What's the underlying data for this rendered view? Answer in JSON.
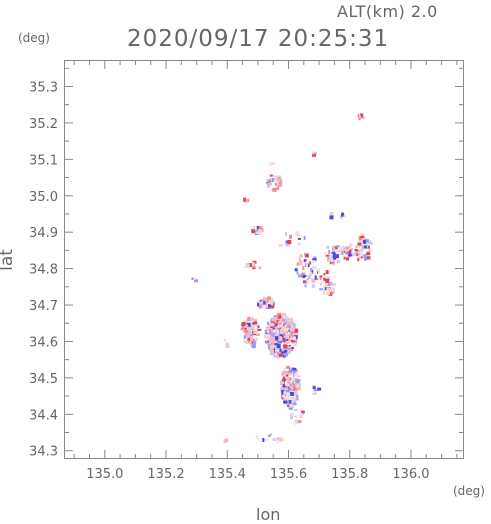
{
  "header": {
    "altitude_label": "ALT(km)  2.0",
    "datetime": "2020/09/17 20:25:31"
  },
  "chart_data": {
    "type": "scatter",
    "title": "2020/09/17 20:25:31",
    "subtitle": "ALT(km)  2.0",
    "xlabel": "lon",
    "ylabel": "lat",
    "x_unit": "(deg)",
    "y_unit": "(deg)",
    "xlim": [
      134.87,
      136.17
    ],
    "ylim": [
      34.28,
      35.37
    ],
    "x_ticks": [
      135.0,
      135.2,
      135.4,
      135.6,
      135.8,
      136.0
    ],
    "x_tick_labels": [
      "135.0",
      "135.2",
      "135.4",
      "135.6",
      "135.8",
      "136.0"
    ],
    "y_ticks": [
      34.3,
      34.4,
      34.5,
      34.6,
      34.7,
      34.8,
      34.9,
      35.0,
      35.1,
      35.2,
      35.3
    ],
    "y_tick_labels": [
      "34.3",
      "34.4",
      "34.5",
      "34.6",
      "34.7",
      "34.8",
      "34.9",
      "35.0",
      "35.1",
      "35.2",
      "35.3"
    ],
    "grid": false,
    "legend": "none",
    "colors": {
      "positive": "#e8404a",
      "negative": "#4848e0",
      "axis": "#888888"
    },
    "echo_regions": [
      {
        "lon": 135.57,
        "lat": 34.62,
        "r_lon": 0.05,
        "r_lat": 0.06,
        "n": 380
      },
      {
        "lon": 135.6,
        "lat": 34.48,
        "r_lon": 0.03,
        "r_lat": 0.06,
        "n": 160
      },
      {
        "lon": 135.47,
        "lat": 34.63,
        "r_lon": 0.03,
        "r_lat": 0.04,
        "n": 90
      },
      {
        "lon": 135.52,
        "lat": 34.71,
        "r_lon": 0.025,
        "r_lat": 0.015,
        "n": 40
      },
      {
        "lon": 135.55,
        "lat": 35.04,
        "r_lon": 0.025,
        "r_lat": 0.02,
        "n": 40
      },
      {
        "lon": 135.84,
        "lat": 34.86,
        "r_lon": 0.025,
        "r_lat": 0.04,
        "n": 60
      },
      {
        "lon": 135.79,
        "lat": 34.85,
        "r_lon": 0.03,
        "r_lat": 0.02,
        "n": 30
      },
      {
        "lon": 135.74,
        "lat": 34.84,
        "r_lon": 0.025,
        "r_lat": 0.03,
        "n": 30
      },
      {
        "lon": 135.66,
        "lat": 34.8,
        "r_lon": 0.04,
        "r_lat": 0.05,
        "n": 50
      },
      {
        "lon": 135.72,
        "lat": 34.76,
        "r_lon": 0.025,
        "r_lat": 0.04,
        "n": 25
      },
      {
        "lon": 135.49,
        "lat": 34.91,
        "r_lon": 0.02,
        "r_lat": 0.01,
        "n": 15
      },
      {
        "lon": 135.29,
        "lat": 34.77,
        "r_lon": 0.01,
        "r_lat": 0.01,
        "n": 4
      },
      {
        "lon": 135.83,
        "lat": 35.22,
        "r_lon": 0.01,
        "r_lat": 0.01,
        "n": 8
      },
      {
        "lon": 135.54,
        "lat": 35.09,
        "r_lon": 0.006,
        "r_lat": 0.006,
        "n": 3
      },
      {
        "lon": 135.68,
        "lat": 35.12,
        "r_lon": 0.006,
        "r_lat": 0.005,
        "n": 3
      },
      {
        "lon": 135.6,
        "lat": 34.89,
        "r_lon": 0.05,
        "r_lat": 0.03,
        "n": 12
      },
      {
        "lon": 135.48,
        "lat": 34.82,
        "r_lon": 0.04,
        "r_lat": 0.02,
        "n": 10
      },
      {
        "lon": 135.63,
        "lat": 34.4,
        "r_lon": 0.03,
        "r_lat": 0.02,
        "n": 12
      },
      {
        "lon": 135.54,
        "lat": 34.34,
        "r_lon": 0.05,
        "r_lat": 0.01,
        "n": 12
      },
      {
        "lon": 135.39,
        "lat": 34.33,
        "r_lon": 0.01,
        "r_lat": 0.006,
        "n": 4
      },
      {
        "lon": 135.46,
        "lat": 34.99,
        "r_lon": 0.015,
        "r_lat": 0.01,
        "n": 4
      },
      {
        "lon": 135.39,
        "lat": 34.6,
        "r_lon": 0.01,
        "r_lat": 0.01,
        "n": 3
      },
      {
        "lon": 135.76,
        "lat": 34.95,
        "r_lon": 0.03,
        "r_lat": 0.01,
        "n": 5
      },
      {
        "lon": 135.68,
        "lat": 34.47,
        "r_lon": 0.015,
        "r_lat": 0.015,
        "n": 6
      }
    ]
  }
}
